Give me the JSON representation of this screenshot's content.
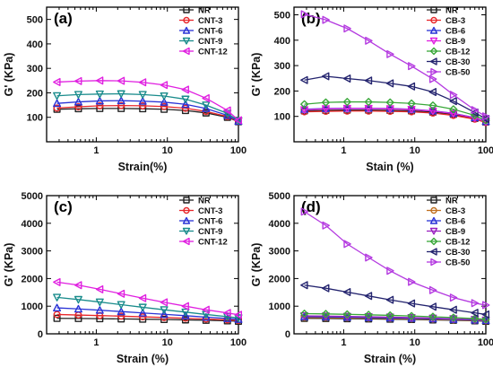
{
  "chart_data": [
    {
      "type": "line",
      "panel_label": "(a)",
      "xlabel": "Strain(%)",
      "ylabel": "G' (KPa)",
      "xscale": "log",
      "xlim": [
        0.2,
        100
      ],
      "ylim": [
        0,
        550
      ],
      "xticks": [
        1,
        10,
        100
      ],
      "xtick_labels": [
        "1",
        "10",
        "100"
      ],
      "yticks": [
        100,
        200,
        300,
        400,
        500
      ],
      "ytick_labels": [
        "100",
        "200",
        "300",
        "400",
        "500"
      ],
      "legend_position": "top-right",
      "x": [
        0.28,
        0.56,
        1.12,
        2.24,
        4.5,
        9,
        18,
        35,
        70,
        100
      ],
      "series": [
        {
          "name": "NR",
          "color": "#222222",
          "marker": "square",
          "values": [
            133,
            135,
            136,
            136,
            135,
            133,
            128,
            118,
            100,
            82
          ]
        },
        {
          "name": "CNT-3",
          "color": "#e8272a",
          "marker": "circle",
          "values": [
            138,
            143,
            147,
            148,
            147,
            144,
            137,
            124,
            103,
            83
          ]
        },
        {
          "name": "CNT-6",
          "color": "#2a33d6",
          "marker": "triangle-up",
          "values": [
            157,
            163,
            167,
            168,
            166,
            162,
            153,
            136,
            108,
            84
          ]
        },
        {
          "name": "CNT-9",
          "color": "#1a8c8c",
          "marker": "triangle-down",
          "values": [
            188,
            193,
            195,
            196,
            193,
            187,
            174,
            150,
            116,
            86
          ]
        },
        {
          "name": "CNT-12",
          "color": "#e020e0",
          "marker": "triangle-left",
          "values": [
            244,
            248,
            250,
            249,
            243,
            232,
            213,
            178,
            128,
            88
          ]
        }
      ]
    },
    {
      "type": "line",
      "panel_label": "(b)",
      "xlabel": "Stain (%)",
      "ylabel": "G' (KPa)",
      "xscale": "log",
      "xlim": [
        0.2,
        100
      ],
      "ylim": [
        0,
        530
      ],
      "xticks": [
        1,
        10,
        100
      ],
      "xtick_labels": [
        "1",
        "10",
        "100"
      ],
      "yticks": [
        100,
        200,
        300,
        400,
        500
      ],
      "ytick_labels": [
        "100",
        "200",
        "300",
        "400",
        "500"
      ],
      "legend_position": "top-right",
      "x": [
        0.28,
        0.56,
        1.12,
        2.24,
        4.5,
        9,
        18,
        35,
        70,
        100
      ],
      "series": [
        {
          "name": "NR",
          "color": "#222222",
          "marker": "square",
          "values": [
            122,
            124,
            125,
            125,
            124,
            122,
            117,
            108,
            92,
            78
          ]
        },
        {
          "name": "CB-3",
          "color": "#e8272a",
          "marker": "circle",
          "values": [
            118,
            120,
            121,
            121,
            120,
            118,
            113,
            104,
            89,
            76
          ]
        },
        {
          "name": "CB-6",
          "color": "#2a33d6",
          "marker": "triangle-up",
          "values": [
            128,
            131,
            132,
            132,
            131,
            128,
            122,
            112,
            95,
            80
          ]
        },
        {
          "name": "CB-9",
          "color": "#e020e0",
          "marker": "triangle-down",
          "values": [
            126,
            130,
            131,
            131,
            130,
            127,
            121,
            111,
            94,
            79
          ]
        },
        {
          "name": "CB-12",
          "color": "#3aa83a",
          "marker": "diamond",
          "values": [
            148,
            155,
            157,
            157,
            155,
            151,
            143,
            128,
            104,
            84
          ]
        },
        {
          "name": "CB-30",
          "color": "#23236e",
          "marker": "triangle-left",
          "values": [
            243,
            258,
            249,
            241,
            230,
            218,
            196,
            160,
            115,
            90
          ]
        },
        {
          "name": "CB-50",
          "color": "#b43ae0",
          "marker": "triangle-right",
          "values": [
            502,
            480,
            446,
            398,
            345,
            298,
            247,
            185,
            125,
            100
          ]
        }
      ]
    },
    {
      "type": "line",
      "panel_label": "(c)",
      "xlabel": "Strain (%)",
      "ylabel": "G' (KPa)",
      "xscale": "log",
      "xlim": [
        0.2,
        100
      ],
      "ylim": [
        0,
        5000
      ],
      "xticks": [
        1,
        10,
        100
      ],
      "xtick_labels": [
        "1",
        "10",
        "100"
      ],
      "yticks": [
        0,
        1000,
        2000,
        3000,
        4000,
        5000
      ],
      "ytick_labels": [
        "0",
        "1000",
        "2000",
        "3000",
        "4000",
        "5000"
      ],
      "legend_position": "top-right",
      "x": [
        0.28,
        0.56,
        1.12,
        2.24,
        4.5,
        9,
        18,
        35,
        70,
        100
      ],
      "series": [
        {
          "name": "NR",
          "color": "#222222",
          "marker": "square",
          "values": [
            560,
            555,
            548,
            540,
            530,
            520,
            505,
            490,
            470,
            455
          ]
        },
        {
          "name": "CNT-3",
          "color": "#e8272a",
          "marker": "circle",
          "values": [
            700,
            680,
            660,
            640,
            615,
            590,
            565,
            535,
            505,
            485
          ]
        },
        {
          "name": "CNT-6",
          "color": "#2a33d6",
          "marker": "triangle-up",
          "values": [
            940,
            900,
            855,
            805,
            755,
            705,
            655,
            605,
            555,
            525
          ]
        },
        {
          "name": "CNT-9",
          "color": "#1a8c8c",
          "marker": "triangle-down",
          "values": [
            1320,
            1240,
            1150,
            1055,
            960,
            870,
            785,
            700,
            620,
            575
          ]
        },
        {
          "name": "CNT-12",
          "color": "#e020e0",
          "marker": "triangle-left",
          "values": [
            1870,
            1760,
            1610,
            1450,
            1290,
            1140,
            1000,
            870,
            755,
            690
          ]
        }
      ]
    },
    {
      "type": "line",
      "panel_label": "(d)",
      "xlabel": "Strain (%)",
      "ylabel": "G' (KPa)",
      "xscale": "log",
      "xlim": [
        0.2,
        100
      ],
      "ylim": [
        0,
        5000
      ],
      "xticks": [
        1,
        10,
        100
      ],
      "xtick_labels": [
        "1",
        "10",
        "100"
      ],
      "yticks": [
        0,
        1000,
        2000,
        3000,
        4000,
        5000
      ],
      "ytick_labels": [
        "0",
        "1000",
        "2000",
        "3000",
        "4000",
        "5000"
      ],
      "legend_position": "top-right",
      "x": [
        0.28,
        0.56,
        1.12,
        2.24,
        4.5,
        9,
        18,
        35,
        70,
        100
      ],
      "series": [
        {
          "name": "NR",
          "color": "#222222",
          "marker": "square",
          "values": [
            560,
            555,
            548,
            540,
            530,
            520,
            505,
            490,
            470,
            455
          ]
        },
        {
          "name": "CB-3",
          "color": "#c07020",
          "marker": "circle",
          "values": [
            590,
            585,
            575,
            565,
            555,
            540,
            525,
            505,
            485,
            470
          ]
        },
        {
          "name": "CB-6",
          "color": "#2a33d6",
          "marker": "triangle-up",
          "values": [
            620,
            612,
            602,
            590,
            578,
            562,
            545,
            525,
            500,
            485
          ]
        },
        {
          "name": "CB-9",
          "color": "#9a20c0",
          "marker": "triangle-down",
          "values": [
            650,
            642,
            630,
            618,
            603,
            586,
            566,
            543,
            515,
            495
          ]
        },
        {
          "name": "CB-12",
          "color": "#3aa83a",
          "marker": "diamond",
          "values": [
            730,
            720,
            705,
            688,
            668,
            645,
            618,
            588,
            550,
            525
          ]
        },
        {
          "name": "CB-30",
          "color": "#23236e",
          "marker": "triangle-left",
          "values": [
            1760,
            1650,
            1510,
            1370,
            1230,
            1100,
            980,
            870,
            760,
            700
          ]
        },
        {
          "name": "CB-50",
          "color": "#b43ae0",
          "marker": "triangle-right",
          "values": [
            4420,
            3920,
            3250,
            2760,
            2280,
            1880,
            1580,
            1310,
            1110,
            1040
          ]
        }
      ]
    }
  ]
}
